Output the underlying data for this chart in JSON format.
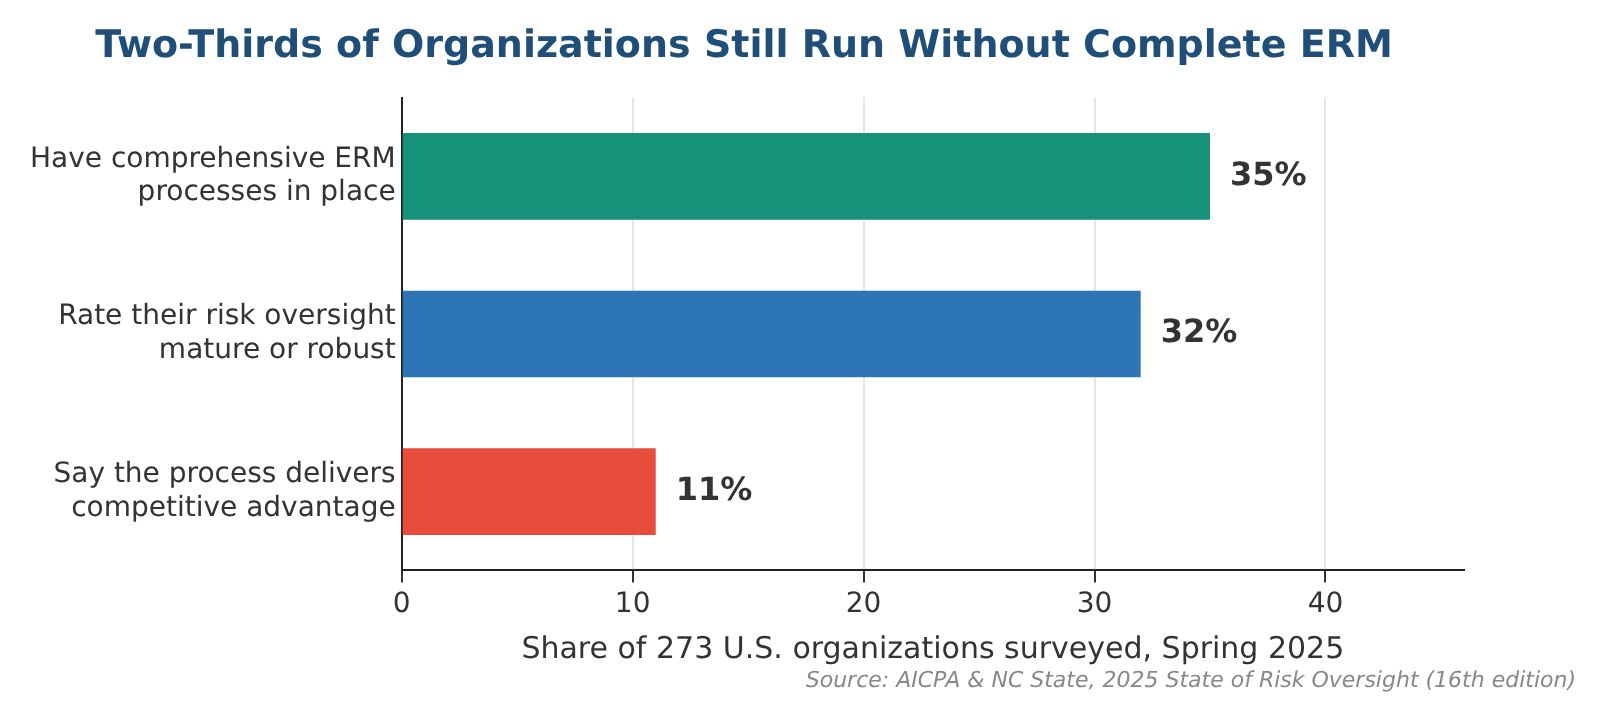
{
  "chart_data": {
    "type": "bar",
    "orientation": "horizontal",
    "title": "Two-Thirds of Organizations Still Run Without Complete ERM",
    "xlabel": "Share of 273 U.S. organizations surveyed, Spring 2025",
    "categories": [
      "Have comprehensive ERM processes in place",
      "Rate their risk oversight mature or robust",
      "Say the process delivers competitive advantage"
    ],
    "values": [
      35,
      32,
      11
    ],
    "colors": [
      "#16917a",
      "#2e75b6",
      "#e74c3c"
    ],
    "value_labels": [
      "35%",
      "32%",
      "11%"
    ],
    "xlim": [
      0,
      46
    ],
    "xticks": [
      0,
      10,
      20,
      30,
      40
    ],
    "grid": "x",
    "legend": false,
    "annotations": [
      "Source: AICPA & NC State, 2025 State of Risk Oversight (16th edition)"
    ]
  }
}
